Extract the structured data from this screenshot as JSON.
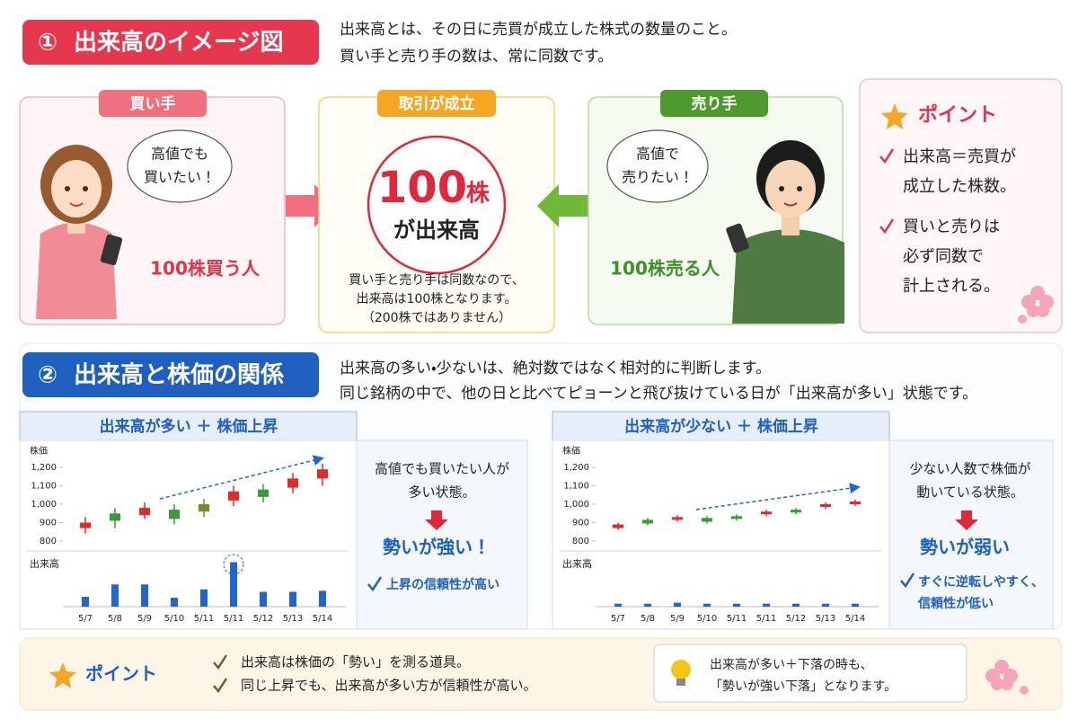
{
  "section1": {
    "number": "①",
    "title": "出来高のイメージ図",
    "description": [
      "出来高とは、その日に売買が成立した株式の数量のこと。",
      "買い手と売り手の数は、常に同数です。"
    ]
  },
  "buyer": {
    "label": "買い手",
    "bubble": [
      "高値でも",
      "買いたい！"
    ],
    "caption": "100株買う人"
  },
  "trade": {
    "label": "取引が成立",
    "amount": "100",
    "unit": "株",
    "volume_text": "が出来高",
    "note": [
      "買い手と売り手は同数なので、",
      "出来高は100株となります。",
      "（200株ではありません）"
    ]
  },
  "seller": {
    "label": "売り手",
    "bubble": [
      "高値で",
      "売りたい！"
    ],
    "caption": "100株売る人"
  },
  "point": {
    "title": "ポイント",
    "items": [
      [
        "出来高＝売買が",
        "成立した株数。"
      ],
      [
        "買いと売りは",
        "必ず同数で",
        "計上される。"
      ]
    ]
  },
  "section2": {
    "number": "②",
    "title": "出来高と株価の関係",
    "description": [
      "出来高の多い・少ないは、絶対数ではなく相対的に判断します。",
      "同じ銘柄の中で、他の日と比べてピョーンと飛び抜けている日が「出来高が多い」状態です。"
    ]
  },
  "panels": [
    {
      "title": "出来高が多い ＋ 株価上昇",
      "chart": {
        "type": "candlestick",
        "price_label": "株価",
        "volume_label": "出来高",
        "categories": [
          "5/7",
          "5/8",
          "5/9",
          "5/10",
          "5/11",
          "5/11",
          "5/12",
          "5/13",
          "5/14"
        ],
        "open": [
          870,
          950,
          940,
          970,
          960,
          1020,
          1080,
          1090,
          1140
        ],
        "close": [
          900,
          910,
          980,
          920,
          1000,
          1070,
          1040,
          1140,
          1190
        ],
        "high": [
          930,
          980,
          1010,
          1000,
          1030,
          1100,
          1110,
          1170,
          1220
        ],
        "low": [
          840,
          870,
          920,
          890,
          930,
          990,
          1010,
          1060,
          1100
        ],
        "colors": [
          "#e02b2b",
          "#3a9a3a",
          "#e02b2b",
          "#3a9a3a",
          "#7a8a2a",
          "#e02b2b",
          "#3a9a3a",
          "#e02b2b",
          "#e02b2b"
        ],
        "ylim": [
          780,
          1230
        ],
        "yticks": [
          800,
          900,
          {
            "value": 1000,
            "label": "1,000"
          },
          {
            "value": 1100,
            "label": "1,100"
          },
          {
            "value": 1200,
            "label": "1,200"
          }
        ],
        "volume": {
          "values": [
            20,
            45,
            45,
            18,
            35,
            90,
            30,
            30,
            32
          ],
          "color": "#1f66d1",
          "ylim": [
            0,
            100
          ]
        }
      },
      "explanation": [
        "高値でも買いたい人が",
        "多い状態。"
      ],
      "result": "勢いが強い！",
      "check": [
        "上昇の信頼性が高い"
      ]
    },
    {
      "title": "出来高が少ない ＋ 株価上昇",
      "chart": {
        "type": "candlestick",
        "price_label": "株価",
        "volume_label": "出来高",
        "categories": [
          "5/7",
          "5/8",
          "5/9",
          "5/10",
          "5/11",
          "5/11",
          "5/12",
          "5/13",
          "5/14"
        ],
        "open": [
          870,
          915,
          915,
          925,
          935,
          945,
          970,
          985,
          1000
        ],
        "close": [
          890,
          895,
          930,
          905,
          920,
          960,
          955,
          1000,
          1015
        ],
        "high": [
          900,
          925,
          940,
          935,
          945,
          970,
          980,
          1010,
          1025
        ],
        "low": [
          860,
          885,
          905,
          895,
          910,
          935,
          945,
          975,
          990
        ],
        "colors": [
          "#e02b2b",
          "#3a9a3a",
          "#e02b2b",
          "#3a9a3a",
          "#3a9a3a",
          "#e02b2b",
          "#3a9a3a",
          "#e02b2b",
          "#e02b2b"
        ],
        "ylim": [
          780,
          1230
        ],
        "yticks": [
          800,
          900,
          {
            "value": 1000,
            "label": "1,000"
          },
          {
            "value": 1100,
            "label": "1,100"
          },
          {
            "value": 1200,
            "label": "1,200"
          }
        ],
        "volume": {
          "values": [
            6,
            6,
            8,
            6,
            6,
            6,
            6,
            6,
            6
          ],
          "color": "#1f66d1",
          "ylim": [
            0,
            100
          ]
        }
      },
      "explanation": [
        "少ない人数で株価が",
        "動いている状態。"
      ],
      "result": "勢いが弱い",
      "check": [
        "すぐに逆転しやすく、",
        "信頼性が低い"
      ]
    }
  ],
  "summary": {
    "title": "ポイント",
    "items": [
      "出来高は株価の「勢い」を測る道具。",
      "同じ上昇でも、出来高が多い方が信頼性が高い。"
    ],
    "tip": [
      "出来高が多い＋下落の時も、",
      "「勢いが強い下落」となります。"
    ]
  }
}
